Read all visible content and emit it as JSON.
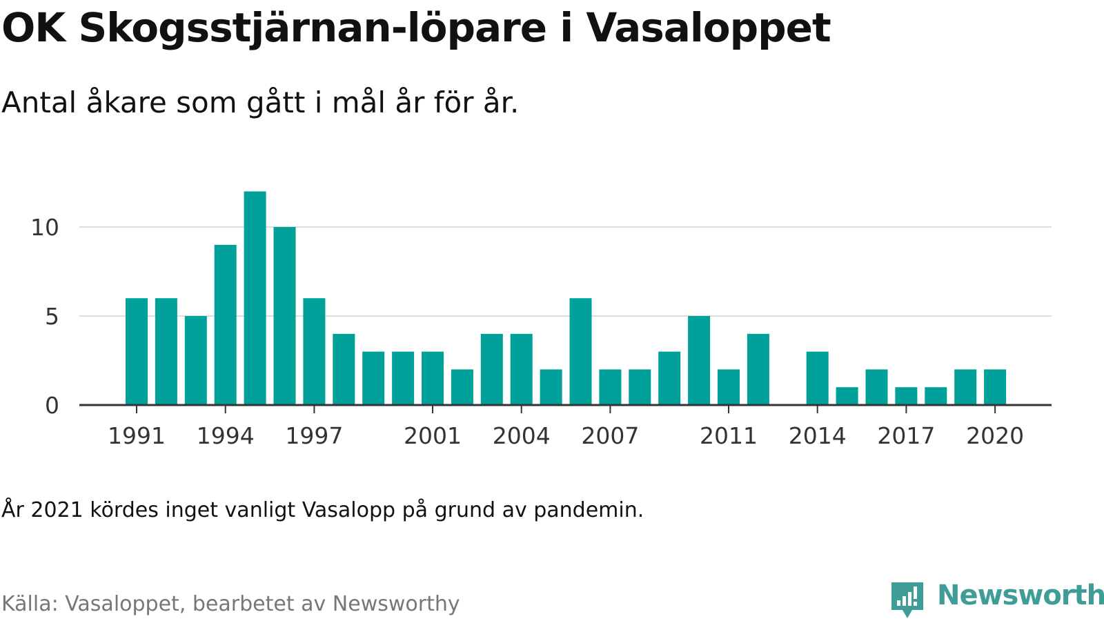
{
  "header": {
    "title": "OK Skogsstjärnan-löpare i Vasaloppet",
    "subtitle": "Antal åkare som gått i mål år för år."
  },
  "footer": {
    "note": "År 2021 kördes inget vanligt Vasalopp på grund av pandemin.",
    "source": "Källa: Vasaloppet, bearbetet av Newsworthy",
    "brand": "Newsworthy"
  },
  "colors": {
    "bar": "#00a19a",
    "brand": "#3f9c96",
    "grid": "#dddddd",
    "axis": "#333333"
  },
  "chart_data": {
    "type": "bar",
    "x": [
      1991,
      1992,
      1993,
      1994,
      1995,
      1996,
      1997,
      1998,
      1999,
      2000,
      2001,
      2002,
      2003,
      2004,
      2005,
      2006,
      2007,
      2008,
      2009,
      2010,
      2011,
      2012,
      2013,
      2014,
      2015,
      2016,
      2017,
      2018,
      2019,
      2020
    ],
    "values": [
      6,
      6,
      5,
      9,
      12,
      10,
      6,
      4,
      3,
      3,
      3,
      2,
      4,
      4,
      2,
      6,
      2,
      2,
      3,
      5,
      2,
      4,
      0,
      3,
      1,
      2,
      1,
      1,
      2,
      2
    ],
    "x_ticks": [
      1991,
      1994,
      1997,
      2001,
      2004,
      2007,
      2011,
      2014,
      2017,
      2020
    ],
    "y_ticks": [
      0,
      5,
      10
    ],
    "ylim": [
      0,
      12.5
    ],
    "grid": "horizontal",
    "xlabel": "",
    "ylabel": ""
  }
}
